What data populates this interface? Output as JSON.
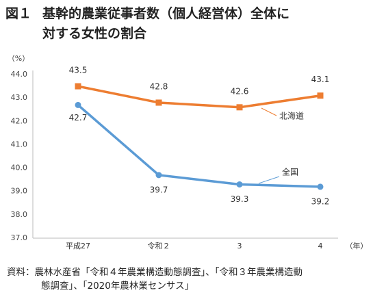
{
  "title": {
    "figure_no": "図１",
    "line1": "基幹的農業従事者数（個人経営体）全体に",
    "line2": "対する女性の割合"
  },
  "source": {
    "line1": "資料：農林水産省「令和４年農業構造動態調査」、「令和３年農業構造動",
    "line2": "態調査」、「2020年農林業センサス」"
  },
  "chart_data": {
    "type": "line",
    "categories": [
      "平成27",
      "令和２",
      "3",
      "4"
    ],
    "xlabel_unit": "（年）",
    "ylabel_unit": "（%）",
    "ylim": [
      37.0,
      44.0
    ],
    "yticks": [
      "37.0",
      "38.0",
      "39.0",
      "40.0",
      "41.0",
      "42.0",
      "43.0",
      "44.0"
    ],
    "grid": false,
    "series": [
      {
        "name": "北海道",
        "values": [
          43.5,
          42.8,
          42.6,
          43.1
        ],
        "labels": [
          "43.5",
          "42.8",
          "42.6",
          "43.1"
        ],
        "color": "#ED7D31",
        "marker": "square"
      },
      {
        "name": "全国",
        "values": [
          42.7,
          39.7,
          39.3,
          39.2
        ],
        "labels": [
          "42.7",
          "39.7",
          "39.3",
          "39.2"
        ],
        "color": "#5B9BD5",
        "marker": "circle"
      }
    ]
  }
}
